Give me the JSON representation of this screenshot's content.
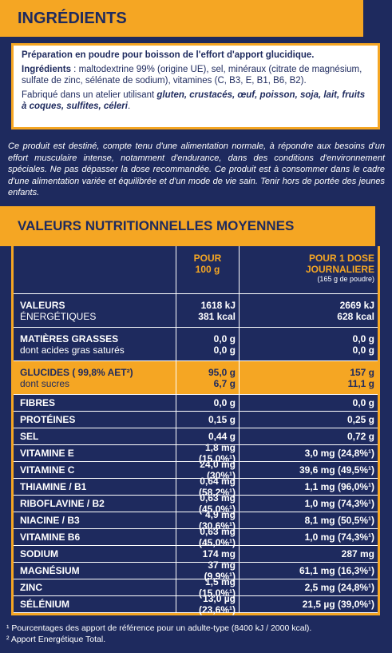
{
  "ingredients": {
    "title": "INGRÉDIENTS",
    "intro": "Préparation en poudre pour boisson de l'effort d'apport glucidique.",
    "list_label": "Ingrédients",
    "list": " : maltodextrine 99% (origine UE), sel, minéraux (citrate de magnésium, sulfate de zinc, sélénate de sodium), vitamines (C, B3, E, B1, B6, B2).",
    "facility": "Fabriqué dans un atelier utilisant ",
    "allergens": "gluten, crustacés, œuf, poisson, soja, lait, fruits à coques, sulfites, céleri",
    "end": "."
  },
  "disclaimer": "Ce produit est destiné, compte tenu d'une alimentation normale, à répondre aux besoins d'un effort musculaire intense, notamment d'endurance, dans des conditions d'environnement spéciales. Ne pas dépasser la dose recommandée. Ce produit est à consommer dans le cadre d'une alimentation variée et équilibrée et d'un mode de vie sain. Tenir hors de portée des jeunes enfants.",
  "nutrition": {
    "title": "VALEURS NUTRITIONNELLES MOYENNES",
    "columns": {
      "per_100g": [
        "POUR",
        "100 g"
      ],
      "per_dose": [
        "POUR 1 DOSE",
        "JOURNALIERE"
      ],
      "per_dose_note": "(165 g de poudre)"
    },
    "rows": [
      {
        "label": [
          "VALEURS",
          "ÉNERGÉTIQUES"
        ],
        "per_100g": [
          "1618 kJ",
          "381 kcal"
        ],
        "per_dose": [
          "2669 kJ",
          "628 kcal"
        ]
      },
      {
        "label": [
          "MATIÈRES GRASSES",
          "dont acides gras saturés"
        ],
        "per_100g": [
          "0,0 g",
          "0,0 g"
        ],
        "per_dose": [
          "0,0 g",
          "0,0 g"
        ]
      },
      {
        "label": [
          "GLUCIDES ( 99,8% AET²)",
          "dont sucres"
        ],
        "per_100g": [
          "95,0 g",
          "6,7 g"
        ],
        "per_dose": [
          "157 g",
          "11,1 g"
        ],
        "highlight": true
      },
      {
        "label": [
          "FIBRES"
        ],
        "per_100g": [
          "0,0 g"
        ],
        "per_dose": [
          "0,0 g"
        ]
      },
      {
        "label": [
          "PROTÉINES"
        ],
        "per_100g": [
          "0,15 g"
        ],
        "per_dose": [
          "0,25 g"
        ]
      },
      {
        "label": [
          "SEL"
        ],
        "per_100g": [
          "0,44 g"
        ],
        "per_dose": [
          "0,72 g"
        ]
      },
      {
        "label": [
          "VITAMINE E"
        ],
        "per_100g": [
          "1,8 mg (15,0%¹)"
        ],
        "per_dose": [
          "3,0 mg (24,8%¹)"
        ]
      },
      {
        "label": [
          "VITAMINE C"
        ],
        "per_100g": [
          "24,0 mg (30%¹)"
        ],
        "per_dose": [
          "39,6 mg (49,5%¹)"
        ]
      },
      {
        "label": [
          "THIAMINE / B1"
        ],
        "per_100g": [
          "0,64 mg (58,2%¹)"
        ],
        "per_dose": [
          "1,1 mg (96,0%¹)"
        ]
      },
      {
        "label": [
          "RIBOFLAVINE / B2"
        ],
        "per_100g": [
          "0,63 mg (45,0%¹)"
        ],
        "per_dose": [
          "1,0 mg (74,3%¹)"
        ]
      },
      {
        "label": [
          "NIACINE / B3"
        ],
        "per_100g": [
          "4,9 mg (30,6%¹)"
        ],
        "per_dose": [
          "8,1 mg (50,5%¹)"
        ]
      },
      {
        "label": [
          "VITAMINE B6"
        ],
        "per_100g": [
          "0,63 mg (45,0%¹)"
        ],
        "per_dose": [
          "1,0 mg (74,3%¹)"
        ]
      },
      {
        "label": [
          "SODIUM"
        ],
        "per_100g": [
          "174 mg"
        ],
        "per_dose": [
          "287 mg"
        ]
      },
      {
        "label": [
          "MAGNÉSIUM"
        ],
        "per_100g": [
          "37 mg (9,9%¹)"
        ],
        "per_dose": [
          "61,1 mg (16,3%¹)"
        ]
      },
      {
        "label": [
          "ZINC"
        ],
        "per_100g": [
          "1,5 mg (15,0%¹)"
        ],
        "per_dose": [
          "2,5 mg (24,8%¹)"
        ]
      },
      {
        "label": [
          "SÉLÉNIUM"
        ],
        "per_100g": [
          "13,0 µg (23,6%¹)"
        ],
        "per_dose": [
          "21,5 µg (39,0%¹)"
        ]
      }
    ]
  },
  "footnotes": [
    "¹ Pourcentages des apport de référence pour un adulte-type (8400 kJ / 2000 kcal).",
    "² Apport Energétique Total."
  ]
}
